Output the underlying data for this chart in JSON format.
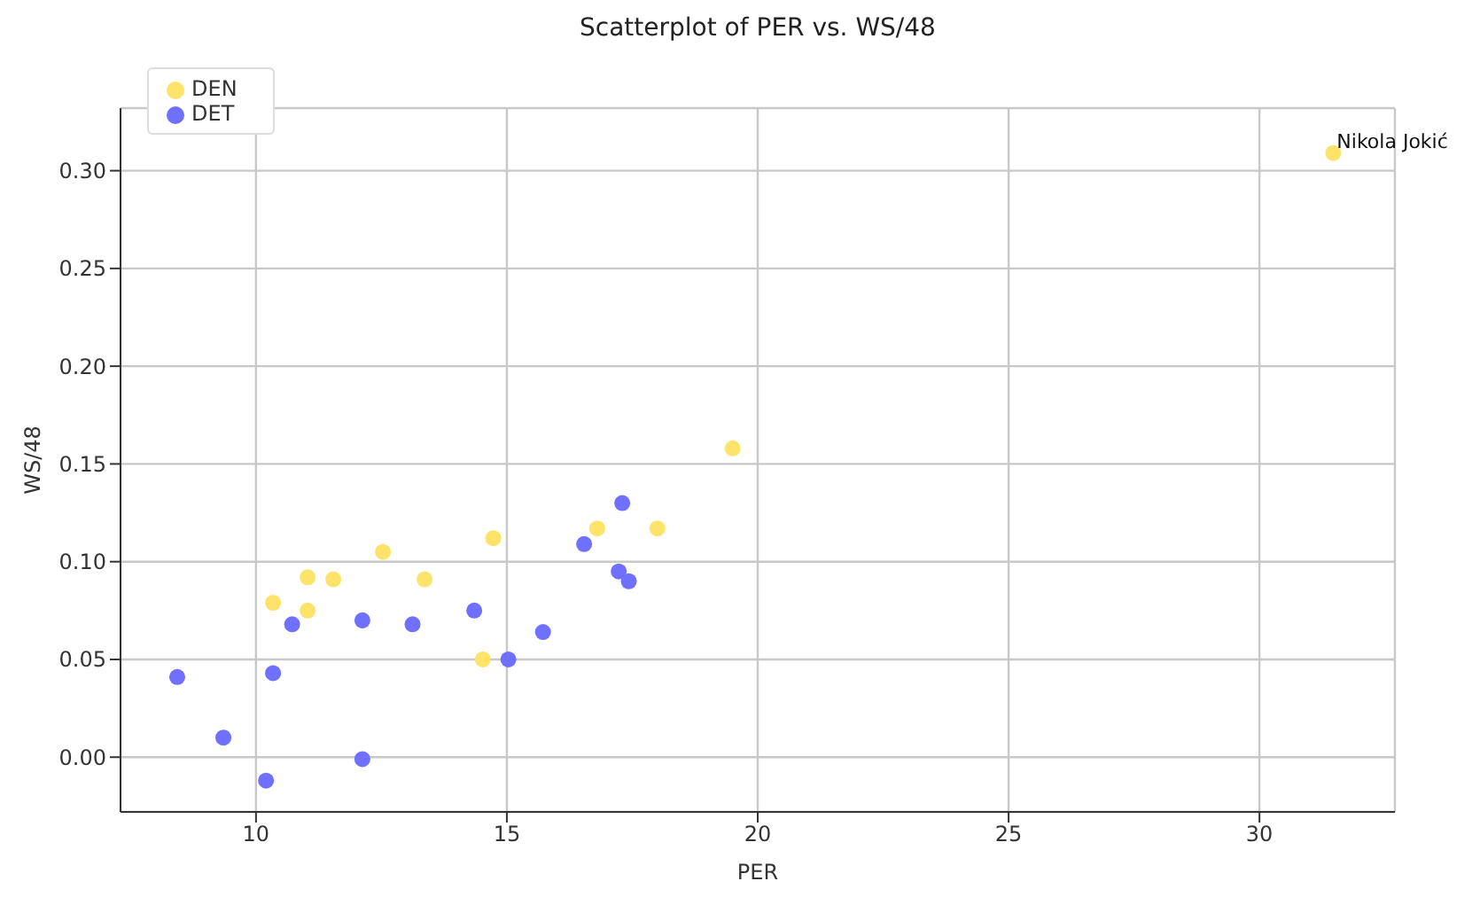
{
  "chart_data": {
    "type": "scatter",
    "title": "Scatterplot of PER vs. WS/48",
    "xlabel": "PER",
    "ylabel": "WS/48",
    "xlim": [
      7.3,
      32.7
    ],
    "xticks": [
      10,
      15,
      20,
      25,
      30
    ],
    "ylim": [
      -0.028,
      0.332
    ],
    "yticks": [
      {
        "value": 0,
        "label": "0.00"
      },
      0.05,
      {
        "value": 0.1,
        "label": "0.10"
      },
      0.15,
      {
        "value": 0.2,
        "label": "0.20"
      },
      0.25,
      {
        "value": 0.3,
        "label": "0.30"
      }
    ],
    "grid": true,
    "legend": "top left",
    "marker": "circle",
    "series": [
      {
        "name": "DEN",
        "color": "#fde36a",
        "x": [
          10.34,
          11.03,
          11.03,
          11.54,
          12.53,
          13.36,
          14.52,
          14.73,
          16.8,
          18.0,
          19.5,
          31.47
        ],
        "values": [
          0.079,
          0.092,
          0.075,
          0.091,
          0.105,
          0.091,
          0.05,
          0.112,
          0.117,
          0.117,
          0.158,
          0.309
        ]
      },
      {
        "name": "DET",
        "color": "#7070ff",
        "x": [
          8.43,
          9.35,
          10.34,
          10.2,
          10.72,
          12.12,
          12.12,
          13.12,
          14.35,
          15.03,
          15.72,
          16.54,
          17.3,
          17.23,
          17.43
        ],
        "values": [
          0.041,
          0.01,
          0.043,
          -0.012,
          0.068,
          -0.001,
          0.07,
          0.068,
          0.075,
          0.05,
          0.064,
          0.109,
          0.13,
          0.095,
          0.09
        ]
      }
    ],
    "annotations": [
      {
        "text": "Nikola Jokić",
        "x": 31.47,
        "y": 0.309
      }
    ]
  }
}
